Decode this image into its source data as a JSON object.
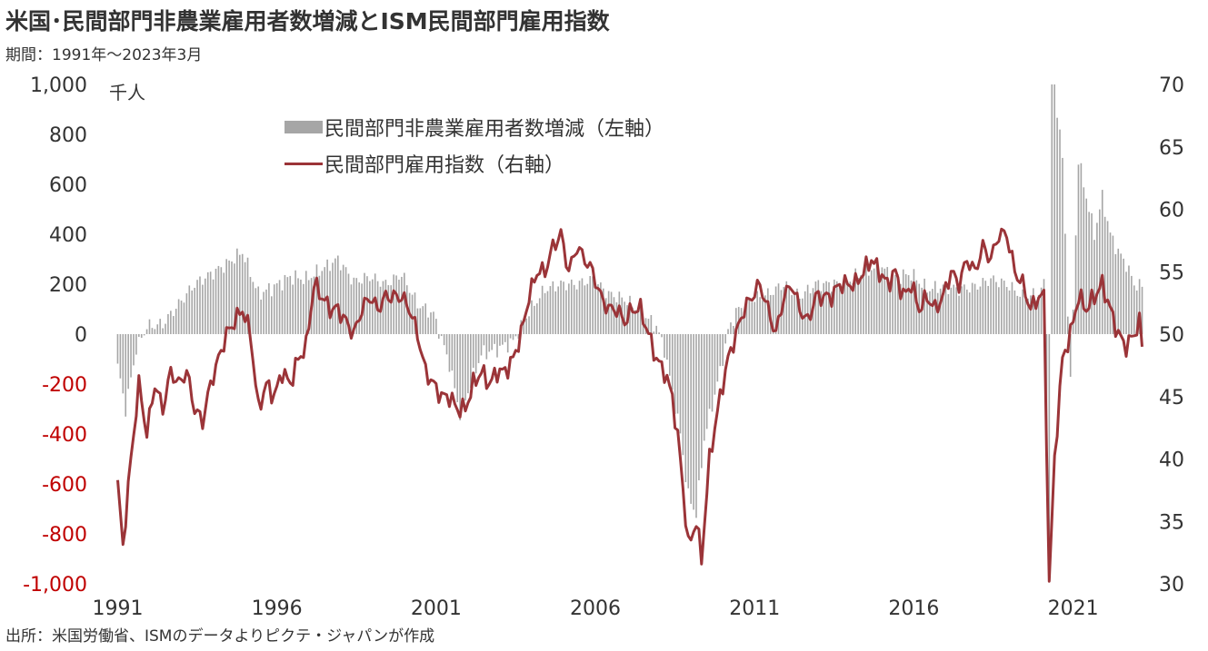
{
  "title": "米国･民間部門非農業雇用者数増減とISM民間部門雇用指数",
  "subtitle": "期間：1991年～2023年3月",
  "unit": "千人",
  "source": "出所：米国労働省、ISMのデータよりピクテ・ジャパンが作成",
  "chart_data": {
    "type": "bar+line",
    "legend": [
      "民間部門非農業雇用者数増減（左軸）",
      "民間部門雇用指数（右軸）"
    ],
    "legend_position": "top-left",
    "colors": {
      "bars": "#a6a6a6",
      "line": "#9b3438",
      "negative_tick": "#c00000"
    },
    "x_tick_labels": [
      "1991",
      "1996",
      "2001",
      "2006",
      "2011",
      "2016",
      "2021"
    ],
    "y_left": {
      "ylim": [
        -1000,
        1000
      ],
      "ticks": [
        "1,000",
        "800",
        "600",
        "400",
        "200",
        "0",
        "-200",
        "-400",
        "-600",
        "-800",
        "-1,000"
      ]
    },
    "y_right": {
      "ylim": [
        30,
        70
      ],
      "ticks": [
        "70",
        "65",
        "60",
        "55",
        "50",
        "45",
        "40",
        "35",
        "30"
      ]
    },
    "series": [
      {
        "name": "民間部門非農業雇用者数増減（左軸）",
        "axis": "left",
        "note": "approximate monthly values read from chart, grouped by quarter-year",
        "x_start": "1991-01",
        "anchors": [
          [
            "1991-01",
            -130
          ],
          [
            "1991-04",
            -300
          ],
          [
            "1991-08",
            -60
          ],
          [
            "1991-12",
            30
          ],
          [
            "1992-06",
            40
          ],
          [
            "1992-12",
            120
          ],
          [
            "1993-06",
            200
          ],
          [
            "1993-12",
            240
          ],
          [
            "1994-06",
            280
          ],
          [
            "1994-12",
            330
          ],
          [
            "1995-06",
            160
          ],
          [
            "1995-12",
            190
          ],
          [
            "1996-06",
            230
          ],
          [
            "1996-12",
            220
          ],
          [
            "1997-06",
            260
          ],
          [
            "1997-12",
            300
          ],
          [
            "1998-06",
            210
          ],
          [
            "1998-12",
            230
          ],
          [
            "1999-06",
            200
          ],
          [
            "1999-12",
            240
          ],
          [
            "2000-06",
            120
          ],
          [
            "2000-12",
            80
          ],
          [
            "2001-06",
            -120
          ],
          [
            "2001-10",
            -320
          ],
          [
            "2002-06",
            -80
          ],
          [
            "2002-12",
            -60
          ],
          [
            "2003-06",
            -30
          ],
          [
            "2003-12",
            90
          ],
          [
            "2004-06",
            180
          ],
          [
            "2004-12",
            200
          ],
          [
            "2005-06",
            200
          ],
          [
            "2005-12",
            220
          ],
          [
            "2006-06",
            160
          ],
          [
            "2006-12",
            140
          ],
          [
            "2007-06",
            90
          ],
          [
            "2007-12",
            30
          ],
          [
            "2008-03",
            -60
          ],
          [
            "2008-09",
            -400
          ],
          [
            "2008-12",
            -650
          ],
          [
            "2009-03",
            -720
          ],
          [
            "2009-06",
            -420
          ],
          [
            "2009-12",
            -150
          ],
          [
            "2010-03",
            10
          ],
          [
            "2010-06",
            90
          ],
          [
            "2010-12",
            140
          ],
          [
            "2011-06",
            160
          ],
          [
            "2011-12",
            200
          ],
          [
            "2012-06",
            150
          ],
          [
            "2012-12",
            200
          ],
          [
            "2013-06",
            200
          ],
          [
            "2013-12",
            210
          ],
          [
            "2014-06",
            250
          ],
          [
            "2014-12",
            270
          ],
          [
            "2015-06",
            230
          ],
          [
            "2015-12",
            240
          ],
          [
            "2016-06",
            180
          ],
          [
            "2016-12",
            190
          ],
          [
            "2017-06",
            180
          ],
          [
            "2017-12",
            190
          ],
          [
            "2018-06",
            220
          ],
          [
            "2018-12",
            200
          ],
          [
            "2019-06",
            150
          ],
          [
            "2019-12",
            160
          ],
          [
            "2020-02",
            200
          ],
          [
            "2020-04",
            -1000
          ],
          [
            "2020-05",
            1000
          ],
          [
            "2020-06",
            1000
          ],
          [
            "2020-09",
            700
          ],
          [
            "2020-12",
            -200
          ],
          [
            "2021-03",
            700
          ],
          [
            "2021-06",
            550
          ],
          [
            "2021-09",
            400
          ],
          [
            "2021-12",
            550
          ],
          [
            "2022-03",
            400
          ],
          [
            "2022-06",
            330
          ],
          [
            "2022-09",
            280
          ],
          [
            "2022-12",
            200
          ],
          [
            "2023-03",
            190
          ]
        ]
      },
      {
        "name": "民間部門雇用指数（右軸）",
        "axis": "right",
        "note": "approximate monthly values read from chart",
        "x_start": "1991-01",
        "anchors": [
          [
            "1991-01",
            38
          ],
          [
            "1991-03",
            33
          ],
          [
            "1991-06",
            40
          ],
          [
            "1991-09",
            46
          ],
          [
            "1991-12",
            42
          ],
          [
            "1992-03",
            46
          ],
          [
            "1992-06",
            44
          ],
          [
            "1992-09",
            47
          ],
          [
            "1992-12",
            46
          ],
          [
            "1993-03",
            47
          ],
          [
            "1993-06",
            44
          ],
          [
            "1993-09",
            43
          ],
          [
            "1993-12",
            46
          ],
          [
            "1994-03",
            48
          ],
          [
            "1994-06",
            50
          ],
          [
            "1994-09",
            51
          ],
          [
            "1994-12",
            52
          ],
          [
            "1995-03",
            50
          ],
          [
            "1995-06",
            44
          ],
          [
            "1995-09",
            46
          ],
          [
            "1995-12",
            45
          ],
          [
            "1996-03",
            47
          ],
          [
            "1996-06",
            46
          ],
          [
            "1996-09",
            48
          ],
          [
            "1996-12",
            49
          ],
          [
            "1997-03",
            54
          ],
          [
            "1997-06",
            53
          ],
          [
            "1997-09",
            52
          ],
          [
            "1997-12",
            52
          ],
          [
            "1998-03",
            51
          ],
          [
            "1998-06",
            50
          ],
          [
            "1998-09",
            52
          ],
          [
            "1998-12",
            53
          ],
          [
            "1999-03",
            52
          ],
          [
            "1999-06",
            53
          ],
          [
            "1999-09",
            53
          ],
          [
            "1999-12",
            53
          ],
          [
            "2000-03",
            52
          ],
          [
            "2000-06",
            50
          ],
          [
            "2000-09",
            47
          ],
          [
            "2000-12",
            46
          ],
          [
            "2001-03",
            45
          ],
          [
            "2001-06",
            45
          ],
          [
            "2001-09",
            44
          ],
          [
            "2001-12",
            44
          ],
          [
            "2002-03",
            46
          ],
          [
            "2002-06",
            47
          ],
          [
            "2002-09",
            46
          ],
          [
            "2002-12",
            47
          ],
          [
            "2003-03",
            47
          ],
          [
            "2003-06",
            48
          ],
          [
            "2003-09",
            50
          ],
          [
            "2003-12",
            53
          ],
          [
            "2004-03",
            55
          ],
          [
            "2004-06",
            55
          ],
          [
            "2004-09",
            57
          ],
          [
            "2004-12",
            58
          ],
          [
            "2005-03",
            55
          ],
          [
            "2005-06",
            57
          ],
          [
            "2005-09",
            56
          ],
          [
            "2005-12",
            55
          ],
          [
            "2006-03",
            53
          ],
          [
            "2006-06",
            52
          ],
          [
            "2006-09",
            52
          ],
          [
            "2006-12",
            51
          ],
          [
            "2007-03",
            52
          ],
          [
            "2007-06",
            52
          ],
          [
            "2007-09",
            50
          ],
          [
            "2007-12",
            48
          ],
          [
            "2008-03",
            47
          ],
          [
            "2008-06",
            45
          ],
          [
            "2008-09",
            40
          ],
          [
            "2008-12",
            33
          ],
          [
            "2009-03",
            35
          ],
          [
            "2009-05",
            32
          ],
          [
            "2009-08",
            40
          ],
          [
            "2009-12",
            45
          ],
          [
            "2010-03",
            48
          ],
          [
            "2010-06",
            50
          ],
          [
            "2010-09",
            52
          ],
          [
            "2010-12",
            53
          ],
          [
            "2011-03",
            54
          ],
          [
            "2011-06",
            52
          ],
          [
            "2011-09",
            50
          ],
          [
            "2011-12",
            53
          ],
          [
            "2012-03",
            54
          ],
          [
            "2012-06",
            52
          ],
          [
            "2012-09",
            51
          ],
          [
            "2012-12",
            53
          ],
          [
            "2013-03",
            53
          ],
          [
            "2013-06",
            53
          ],
          [
            "2013-09",
            54
          ],
          [
            "2013-12",
            54
          ],
          [
            "2014-03",
            54
          ],
          [
            "2014-06",
            55
          ],
          [
            "2014-09",
            56
          ],
          [
            "2014-12",
            55
          ],
          [
            "2015-03",
            54
          ],
          [
            "2015-06",
            55
          ],
          [
            "2015-09",
            53
          ],
          [
            "2015-12",
            54
          ],
          [
            "2016-03",
            52
          ],
          [
            "2016-06",
            53
          ],
          [
            "2016-09",
            52
          ],
          [
            "2016-12",
            53
          ],
          [
            "2017-03",
            55
          ],
          [
            "2017-06",
            54
          ],
          [
            "2017-09",
            56
          ],
          [
            "2017-12",
            55
          ],
          [
            "2018-03",
            57
          ],
          [
            "2018-06",
            56
          ],
          [
            "2018-09",
            58
          ],
          [
            "2018-12",
            58
          ],
          [
            "2019-03",
            55
          ],
          [
            "2019-06",
            54
          ],
          [
            "2019-09",
            52
          ],
          [
            "2019-12",
            53
          ],
          [
            "2020-02",
            53
          ],
          [
            "2020-04",
            30
          ],
          [
            "2020-06",
            40
          ],
          [
            "2020-09",
            48
          ],
          [
            "2020-12",
            50
          ],
          [
            "2021-03",
            53
          ],
          [
            "2021-06",
            52
          ],
          [
            "2021-09",
            53
          ],
          [
            "2021-12",
            54
          ],
          [
            "2022-03",
            52
          ],
          [
            "2022-06",
            50
          ],
          [
            "2022-09",
            49
          ],
          [
            "2022-12",
            50
          ],
          [
            "2023-02",
            51
          ],
          [
            "2023-03",
            49
          ]
        ]
      }
    ]
  }
}
